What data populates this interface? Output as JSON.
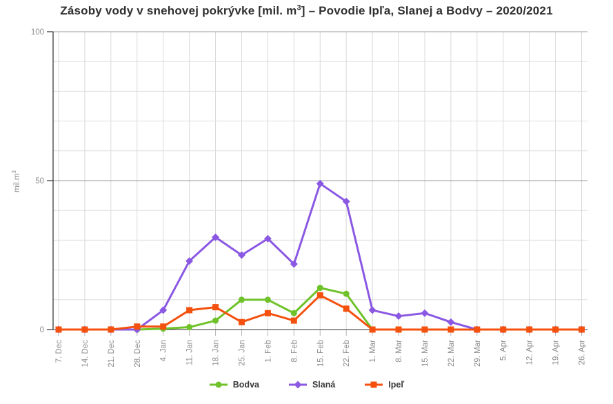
{
  "title": {
    "prefix": "Zásoby vody v snehovej pokrývke [mil. m",
    "superscript": "3",
    "suffix": "] – Povodie Ipľa, Slanej a Bodvy – 2020/2021"
  },
  "y_axis": {
    "label_base": "mil.m",
    "label_superscript": "3"
  },
  "chart_data": {
    "type": "line",
    "title": "Zásoby vody v snehovej pokrývke [mil. m³] – Povodie Ipľa, Slanej a Bodvy – 2020/2021",
    "xlabel": "",
    "ylabel": "mil.m³",
    "ylim": [
      0,
      100
    ],
    "y_ticks": [
      0,
      50,
      100
    ],
    "y_minor_step": 10,
    "grid": true,
    "legend_position": "bottom",
    "categories": [
      "7. Dec",
      "14. Dec",
      "21. Dec",
      "28. Dec",
      "4. Jan",
      "11. Jan",
      "18. Jan",
      "25. Jan",
      "1. Feb",
      "8. Feb",
      "15. Feb",
      "22. Feb",
      "1. Mar",
      "8. Mar",
      "15. Mar",
      "22. Mar",
      "29. Mar",
      "5. Apr",
      "12. Apr",
      "19. Apr",
      "26. Apr"
    ],
    "series": [
      {
        "name": "Bodva",
        "color": "#6fc229",
        "marker": "circle",
        "values": [
          0,
          0,
          0,
          0,
          0.3,
          0.8,
          3,
          10,
          10,
          5.5,
          14,
          12,
          0,
          0,
          0,
          0,
          0,
          0,
          0,
          0,
          0
        ]
      },
      {
        "name": "Slaná",
        "color": "#8a58e3",
        "marker": "diamond",
        "values": [
          0,
          0,
          0,
          0,
          6.5,
          23,
          31,
          25,
          30.5,
          22,
          49,
          43,
          6.5,
          4.5,
          5.5,
          2.5,
          0,
          0,
          0,
          0,
          0
        ]
      },
      {
        "name": "Ipeľ",
        "color": "#f4510e",
        "marker": "square",
        "values": [
          0,
          0,
          0,
          1,
          1,
          6.5,
          7.5,
          2.5,
          5.5,
          3,
          11.5,
          7,
          0,
          0,
          0,
          0,
          0,
          0,
          0,
          0,
          0
        ]
      }
    ]
  }
}
